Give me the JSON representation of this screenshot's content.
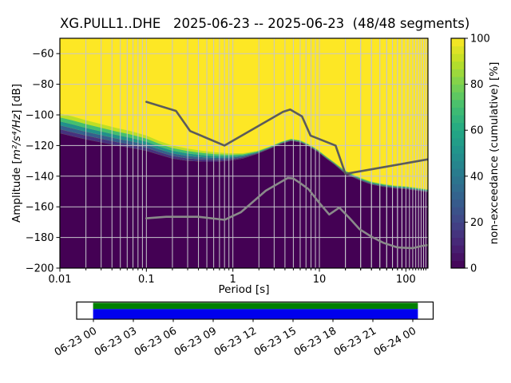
{
  "figure": {
    "title": "XG.PULL1..DHE   2025-06-23 -- 2025-06-23  (48/48 segments)",
    "background": "#ffffff"
  },
  "chart_data": {
    "type": "heatmap",
    "title": "XG.PULL1..DHE   2025-06-23 -- 2025-06-23  (48/48 segments)",
    "xlabel": "Period [s]",
    "ylabel": {
      "prefix": "Amplitude [",
      "units": "m²/s⁴/Hz",
      "suffix": "] [dB]"
    },
    "xscale": "log",
    "xlim": [
      0.01,
      180
    ],
    "ylim": [
      -200,
      -50
    ],
    "grid": true,
    "grid_color": "#c6c6cc",
    "xticks": {
      "values": [
        0.01,
        0.1,
        1,
        10,
        100
      ],
      "labels": [
        "0.01",
        "0.1",
        "1",
        "10",
        "100"
      ]
    },
    "yticks": {
      "values": [
        -60,
        -80,
        -100,
        -120,
        -140,
        -160,
        -180,
        -200
      ],
      "labels": [
        "−60",
        "−80",
        "−100",
        "−120",
        "−140",
        "−160",
        "−180",
        "−200"
      ]
    },
    "colorbar": {
      "label": "non-exceedance (cumulative) [%]",
      "ticks": [
        0,
        20,
        40,
        60,
        80,
        100
      ],
      "tick_labels": [
        "0",
        "20",
        "40",
        "60",
        "80",
        "100"
      ],
      "colormap": "viridis",
      "steps": 30,
      "stops": [
        "#440154",
        "#482475",
        "#414487",
        "#355f8d",
        "#2a788e",
        "#21918c",
        "#22a884",
        "#42be71",
        "#7ad151",
        "#bddf26",
        "#fde725"
      ]
    },
    "cumulative_mesh": {
      "description": "dB level of the cumulative histogram per period: db_at_100pct = top of color transition (yellow above), db_at_0pct = top of dark region",
      "periods": [
        0.01,
        0.014,
        0.02,
        0.03,
        0.045,
        0.065,
        0.1,
        0.14,
        0.2,
        0.3,
        0.45,
        0.65,
        0.9,
        1.3,
        1.9,
        2.7,
        3.6,
        4.7,
        6,
        7.5,
        9.5,
        12,
        15,
        19,
        24,
        30,
        40,
        55,
        75,
        100,
        135,
        180
      ],
      "db_at_100pct": [
        -99,
        -101,
        -103.5,
        -106,
        -108.5,
        -110.5,
        -113.5,
        -117,
        -120,
        -122,
        -123.5,
        -124.5,
        -125,
        -125,
        -123.5,
        -120.5,
        -117.5,
        -115.5,
        -116.5,
        -119,
        -122.5,
        -127,
        -131,
        -135.5,
        -138.5,
        -141,
        -143.5,
        -145,
        -146,
        -146.5,
        -147.5,
        -148.5
      ],
      "db_at_0pct": [
        -112,
        -114,
        -116,
        -118,
        -120,
        -121.5,
        -123.5,
        -126,
        -128.5,
        -130,
        -130.5,
        -130.5,
        -130,
        -128.5,
        -125.5,
        -122,
        -119,
        -117,
        -118,
        -120.5,
        -124,
        -128.5,
        -132.5,
        -137.5,
        -140.5,
        -143,
        -145.5,
        -147,
        -148,
        -148.5,
        -149.5,
        -150.5
      ],
      "color_100pct": "#fde725",
      "color_0pct": "#440154",
      "band_colors": [
        "#bddf26",
        "#44bf70",
        "#21918c",
        "#35608d",
        "#46327e"
      ]
    },
    "noise_models": [
      {
        "name": "high_noise_model",
        "color": "#5b5b5b",
        "width": 2.6,
        "periods": [
          0.1,
          0.22,
          0.32,
          0.8,
          3.8,
          4.6,
          6.3,
          7.9,
          15.4,
          20,
          180
        ],
        "db": [
          -91.5,
          -97.4,
          -110.5,
          -120,
          -98,
          -96.5,
          -101,
          -113.5,
          -120,
          -138.5,
          -129
        ]
      },
      {
        "name": "low_noise_model",
        "color": "#8a8a8a",
        "width": 2.6,
        "periods": [
          0.1,
          0.17,
          0.4,
          0.8,
          1.24,
          2.4,
          4.3,
          5,
          6,
          7.5,
          10,
          13,
          17,
          22,
          29,
          40,
          55,
          80,
          120,
          155,
          180
        ],
        "db": [
          -167.5,
          -166.5,
          -166.5,
          -168.5,
          -163.5,
          -149.5,
          -141.2,
          -141.5,
          -144.5,
          -148.5,
          -157.5,
          -165,
          -160.5,
          -167,
          -174.5,
          -179.5,
          -183.5,
          -186.5,
          -187,
          -185.5,
          -185
        ]
      }
    ],
    "timeline": {
      "tick_labels": [
        "06-23 00",
        "06-23 03",
        "06-23 06",
        "06-23 09",
        "06-23 12",
        "06-23 15",
        "06-23 18",
        "06-23 21",
        "06-24 00"
      ],
      "coverage": {
        "start_frac": -0.001,
        "end_frac": 1.016,
        "top_color": "#008000",
        "bottom_color": "#0000ee"
      }
    }
  }
}
